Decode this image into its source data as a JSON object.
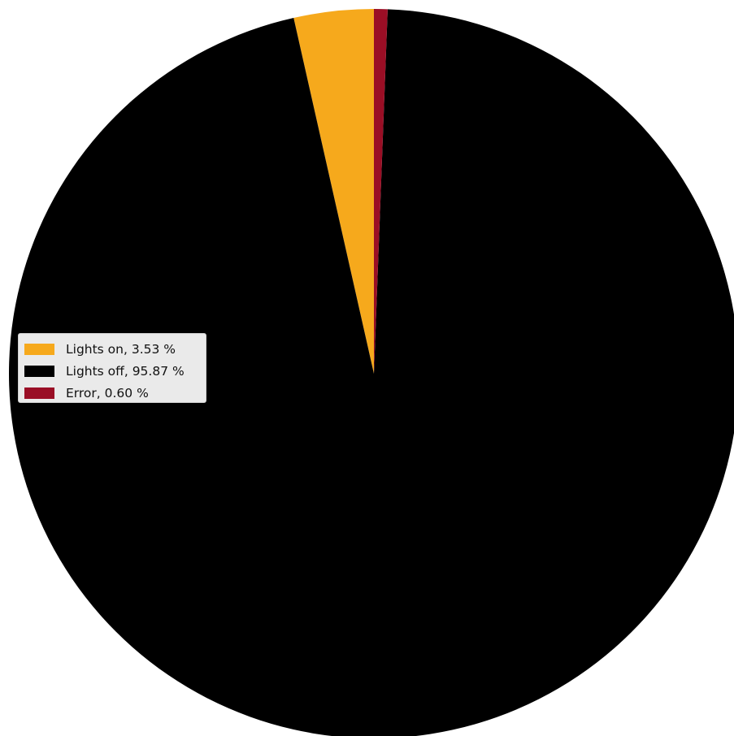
{
  "chart_data": {
    "type": "pie",
    "start_angle_deg": 90,
    "direction": "counterclockwise",
    "legend_position": "center-left",
    "slices": [
      {
        "label": "Lights on",
        "value": 3.53,
        "color": "#F6A91C",
        "legend_text": "Lights on, 3.53 %"
      },
      {
        "label": "Lights off",
        "value": 95.87,
        "color": "#000000",
        "legend_text": "Lights off, 95.87 %"
      },
      {
        "label": "Error",
        "value": 0.6,
        "color": "#9A0E25",
        "legend_text": "Error, 0.60 %"
      }
    ]
  }
}
